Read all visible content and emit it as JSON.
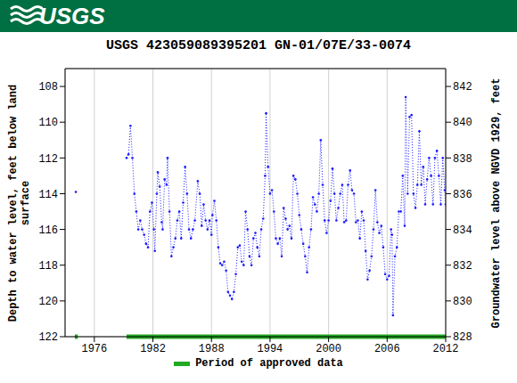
{
  "header": {
    "logo": "USGS"
  },
  "chart_data": {
    "type": "line",
    "title": "USGS 423059089395201 GN-01/07E/33-0074",
    "ylabel": "Depth to water level, feet below land surface",
    "y2label": "Groundwater level above NGVD 1929, feet",
    "xlim": [
      1973,
      2012
    ],
    "xticks": [
      1976,
      1982,
      1988,
      1994,
      2000,
      2006,
      2012
    ],
    "ylim": [
      122,
      107
    ],
    "yticks": [
      108,
      110,
      112,
      114,
      116,
      118,
      120,
      122
    ],
    "y2lim": [
      828,
      843
    ],
    "y2ticks": [
      828,
      830,
      832,
      834,
      836,
      838,
      840,
      842
    ],
    "grid": true,
    "x": [
      1974.1,
      1976.7,
      1979.3,
      1979.5,
      1979.7,
      1979.9,
      1980.1,
      1980.3,
      1980.5,
      1980.7,
      1980.9,
      1981.1,
      1981.3,
      1981.5,
      1981.7,
      1981.9,
      1982.1,
      1982.2,
      1982.4,
      1982.5,
      1982.7,
      1982.9,
      1983.0,
      1983.2,
      1983.4,
      1983.5,
      1983.7,
      1983.9,
      1984.1,
      1984.3,
      1984.5,
      1984.7,
      1984.9,
      1985.1,
      1985.3,
      1985.5,
      1985.7,
      1985.9,
      1986.1,
      1986.3,
      1986.6,
      1986.8,
      1987.0,
      1987.2,
      1987.4,
      1987.6,
      1987.8,
      1988.0,
      1988.1,
      1988.3,
      1988.5,
      1988.7,
      1988.9,
      1989.1,
      1989.3,
      1989.5,
      1989.7,
      1989.9,
      1990.1,
      1990.3,
      1990.5,
      1990.7,
      1990.9,
      1991.1,
      1991.3,
      1991.5,
      1991.7,
      1991.9,
      1992.1,
      1992.3,
      1992.5,
      1992.7,
      1992.9,
      1993.1,
      1993.3,
      1993.5,
      1993.6,
      1993.8,
      1994.0,
      1994.2,
      1994.4,
      1994.6,
      1994.8,
      1995.0,
      1995.2,
      1995.4,
      1995.6,
      1995.8,
      1996.0,
      1996.2,
      1996.4,
      1996.6,
      1996.8,
      1997.0,
      1997.2,
      1997.4,
      1997.6,
      1997.8,
      1998.0,
      1998.2,
      1998.4,
      1998.6,
      1998.8,
      1999.0,
      1999.2,
      1999.4,
      1999.6,
      1999.8,
      2000.0,
      2000.2,
      2000.4,
      2000.6,
      2000.8,
      2001.0,
      2001.2,
      2001.4,
      2001.6,
      2001.8,
      2002.0,
      2002.2,
      2002.4,
      2002.6,
      2002.8,
      2003.0,
      2003.2,
      2003.4,
      2003.6,
      2003.8,
      2004.0,
      2004.2,
      2004.4,
      2004.6,
      2004.8,
      2005.0,
      2005.2,
      2005.4,
      2005.6,
      2005.8,
      2006.0,
      2006.2,
      2006.4,
      2006.5,
      2006.6,
      2006.8,
      2007.0,
      2007.2,
      2007.4,
      2007.6,
      2007.8,
      2007.9,
      2008.1,
      2008.3,
      2008.5,
      2008.7,
      2008.9,
      2009.1,
      2009.3,
      2009.5,
      2009.7,
      2009.9,
      2010.1,
      2010.3,
      2010.5,
      2010.7,
      2010.9,
      2011.1,
      2011.3,
      2011.5,
      2011.7,
      2011.9,
      2012.0
    ],
    "series": [
      {
        "color": "#1a1aff",
        "marker": "point",
        "line_style": "dotted",
        "values": [
          113.9,
          null,
          112.0,
          111.8,
          110.2,
          112.0,
          114.0,
          115.0,
          116.0,
          115.5,
          116.0,
          116.3,
          116.8,
          117.0,
          115.0,
          114.5,
          116.0,
          117.2,
          114.0,
          112.8,
          113.6,
          115.6,
          116.0,
          113.2,
          113.5,
          112.0,
          115.0,
          117.5,
          117.0,
          116.5,
          115.5,
          115.0,
          116.5,
          114.5,
          112.5,
          114.0,
          116.0,
          116.5,
          116.0,
          115.5,
          113.3,
          114.0,
          115.8,
          114.6,
          115.5,
          116.0,
          115.5,
          116.3,
          115.2,
          114.4,
          115.5,
          117.0,
          117.9,
          118.0,
          117.8,
          118.3,
          119.5,
          119.7,
          119.9,
          119.5,
          118.5,
          117.0,
          116.9,
          117.8,
          118.0,
          115.0,
          116.0,
          117.5,
          118.0,
          116.5,
          116.2,
          117.0,
          117.5,
          116.0,
          115.4,
          113.0,
          109.5,
          112.5,
          114.0,
          113.8,
          115.0,
          116.5,
          116.8,
          116.5,
          117.5,
          114.8,
          115.4,
          116.0,
          115.8,
          116.5,
          113.0,
          113.2,
          114.0,
          115.2,
          116.0,
          116.8,
          117.5,
          118.4,
          117.0,
          116.0,
          114.2,
          114.6,
          115.0,
          114.0,
          111.0,
          113.5,
          115.5,
          116.2,
          115.5,
          114.4,
          112.6,
          114.0,
          115.5,
          114.8,
          114.0,
          113.5,
          115.6,
          115.5,
          113.5,
          112.7,
          113.8,
          114.0,
          115.6,
          115.5,
          116.5,
          115.0,
          115.5,
          117.2,
          118.8,
          118.3,
          117.5,
          116.0,
          113.8,
          115.6,
          116.2,
          115.8,
          117.0,
          118.5,
          118.8,
          118.6,
          116.0,
          116.3,
          120.8,
          117.5,
          117.0,
          115.0,
          115.0,
          113.0,
          115.8,
          108.6,
          114.0,
          109.7,
          109.6,
          114.0,
          114.8,
          113.5,
          110.5,
          113.5,
          112.5,
          114.6,
          113.2,
          112.0,
          113.0,
          114.6,
          112.0,
          111.6,
          113.0,
          114.6,
          112.0,
          113.8,
          114.6
        ]
      }
    ],
    "approved_data": {
      "name": "Period of approved data",
      "color": "#22aa22",
      "periods": [
        [
          1974.0,
          1974.3
        ],
        [
          1979.3,
          2012.0
        ]
      ]
    }
  }
}
